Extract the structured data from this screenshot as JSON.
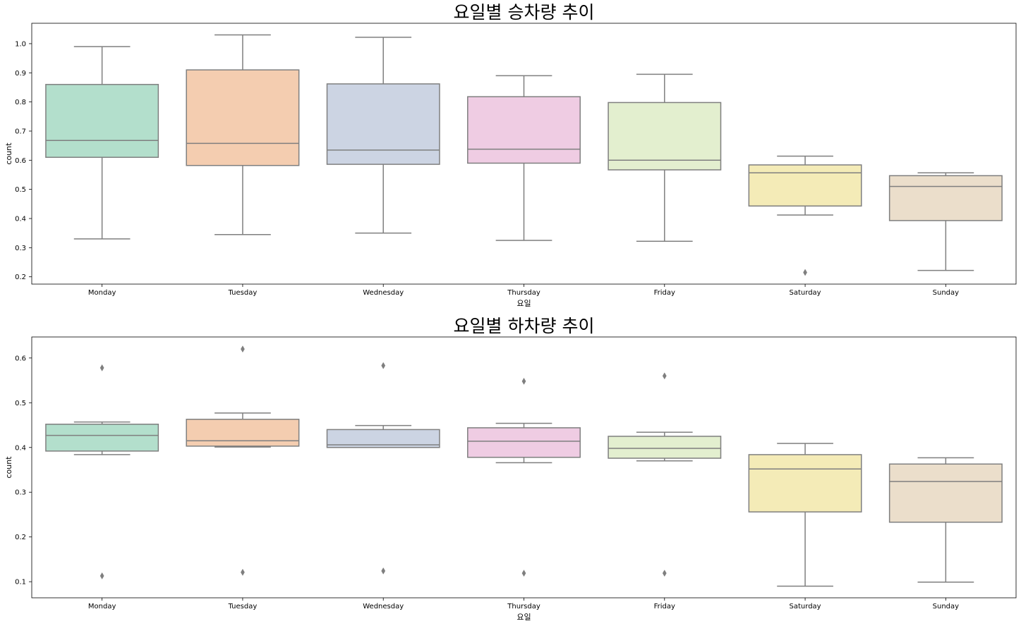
{
  "chart_data": [
    {
      "type": "box",
      "title": "요일별 승차량 추이",
      "xlabel": "요일",
      "ylabel": "count",
      "categories": [
        "Monday",
        "Tuesday",
        "Wednesday",
        "Thursday",
        "Friday",
        "Saturday",
        "Sunday"
      ],
      "colors": [
        "#b3dfcc",
        "#f4cdb0",
        "#ccd4e3",
        "#efcce3",
        "#e3efcf",
        "#f4ebb7",
        "#ebdecb"
      ],
      "yticks": [
        0.2,
        0.3,
        0.4,
        0.5,
        0.6,
        0.7,
        0.8,
        0.9,
        1.0
      ],
      "ylim": [
        0.175,
        1.07
      ],
      "grid": false,
      "boxes": [
        {
          "whislo": 0.33,
          "q1": 0.61,
          "med": 0.668,
          "q3": 0.86,
          "whishi": 0.99,
          "fliers": []
        },
        {
          "whislo": 0.345,
          "q1": 0.582,
          "med": 0.658,
          "q3": 0.91,
          "whishi": 1.03,
          "fliers": []
        },
        {
          "whislo": 0.35,
          "q1": 0.586,
          "med": 0.635,
          "q3": 0.862,
          "whishi": 1.022,
          "fliers": []
        },
        {
          "whislo": 0.325,
          "q1": 0.59,
          "med": 0.638,
          "q3": 0.818,
          "whishi": 0.89,
          "fliers": []
        },
        {
          "whislo": 0.322,
          "q1": 0.567,
          "med": 0.6,
          "q3": 0.798,
          "whishi": 0.895,
          "fliers": []
        },
        {
          "whislo": 0.412,
          "q1": 0.443,
          "med": 0.557,
          "q3": 0.584,
          "whishi": 0.614,
          "fliers": [
            0.215
          ]
        },
        {
          "whislo": 0.222,
          "q1": 0.393,
          "med": 0.51,
          "q3": 0.547,
          "whishi": 0.557,
          "fliers": []
        }
      ]
    },
    {
      "type": "box",
      "title": "요일별 하차량 추이",
      "xlabel": "요일",
      "ylabel": "count",
      "categories": [
        "Monday",
        "Tuesday",
        "Wednesday",
        "Thursday",
        "Friday",
        "Saturday",
        "Sunday"
      ],
      "colors": [
        "#b3dfcc",
        "#f4cdb0",
        "#ccd4e3",
        "#efcce3",
        "#e3efcf",
        "#f4ebb7",
        "#ebdecb"
      ],
      "yticks": [
        0.1,
        0.2,
        0.3,
        0.4,
        0.5,
        0.6
      ],
      "ylim": [
        0.064,
        0.647
      ],
      "grid": false,
      "boxes": [
        {
          "whislo": 0.384,
          "q1": 0.392,
          "med": 0.427,
          "q3": 0.452,
          "whishi": 0.457,
          "fliers": [
            0.578,
            0.113
          ]
        },
        {
          "whislo": 0.401,
          "q1": 0.403,
          "med": 0.415,
          "q3": 0.463,
          "whishi": 0.477,
          "fliers": [
            0.62,
            0.121
          ]
        },
        {
          "whislo": 0.4,
          "q1": 0.4,
          "med": 0.406,
          "q3": 0.44,
          "whishi": 0.449,
          "fliers": [
            0.583,
            0.124
          ]
        },
        {
          "whislo": 0.366,
          "q1": 0.378,
          "med": 0.414,
          "q3": 0.444,
          "whishi": 0.454,
          "fliers": [
            0.548,
            0.119
          ]
        },
        {
          "whislo": 0.37,
          "q1": 0.376,
          "med": 0.398,
          "q3": 0.425,
          "whishi": 0.434,
          "fliers": [
            0.56,
            0.119
          ]
        },
        {
          "whislo": 0.09,
          "q1": 0.256,
          "med": 0.352,
          "q3": 0.384,
          "whishi": 0.409,
          "fliers": []
        },
        {
          "whislo": 0.099,
          "q1": 0.233,
          "med": 0.324,
          "q3": 0.363,
          "whishi": 0.377,
          "fliers": []
        }
      ]
    }
  ]
}
